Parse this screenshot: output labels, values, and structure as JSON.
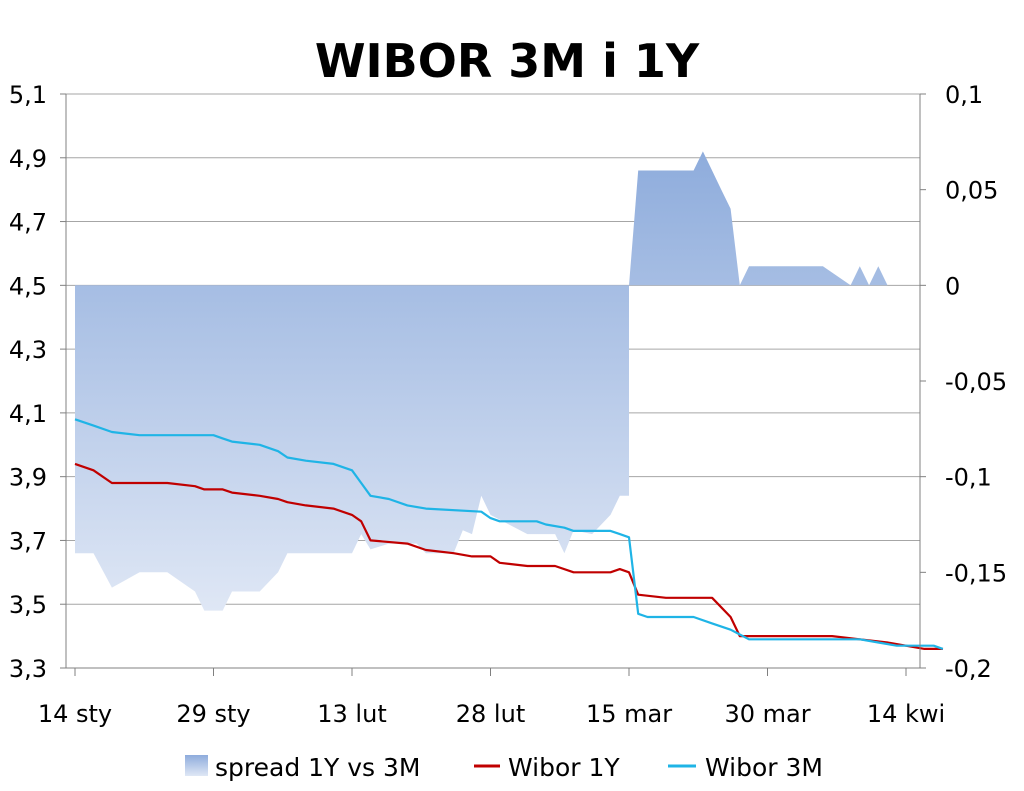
{
  "chart_data": {
    "type": "line",
    "title": "WIBOR 3M i 1Y",
    "x_tick_labels": [
      "14 sty",
      "29 sty",
      "13 lut",
      "28 lut",
      "15 mar",
      "30 mar",
      "14 kwi"
    ],
    "y_left": {
      "lim": [
        3.3,
        5.1
      ],
      "ticks": [
        "5,1",
        "4,9",
        "4,7",
        "4,5",
        "4,3",
        "4,1",
        "3,9",
        "3,7",
        "3,5",
        "3,3"
      ],
      "tick_values": [
        5.1,
        4.9,
        4.7,
        4.5,
        4.3,
        4.1,
        3.9,
        3.7,
        3.5,
        3.3
      ]
    },
    "y_right": {
      "lim": [
        -0.2,
        0.1
      ],
      "ticks": [
        "0,1",
        "0,05",
        "0",
        "-0,05",
        "-0,1",
        "-0,15",
        "-0,2"
      ],
      "tick_values": [
        0.1,
        0.05,
        0,
        -0.05,
        -0.1,
        -0.15,
        -0.2
      ]
    },
    "grid": true,
    "legend_position": "bottom",
    "series": [
      {
        "name": "spread 1Y vs 3M",
        "kind": "area",
        "axis": "right",
        "color_top": "#8eacdc",
        "color_bottom": "#dfe7f5",
        "points": [
          [
            "2020-01-14",
            -0.14
          ],
          [
            "2020-01-16",
            -0.14
          ],
          [
            "2020-01-18",
            -0.158
          ],
          [
            "2020-01-21",
            -0.15
          ],
          [
            "2020-01-24",
            -0.15
          ],
          [
            "2020-01-27",
            -0.16
          ],
          [
            "2020-01-28",
            -0.17
          ],
          [
            "2020-01-30",
            -0.17
          ],
          [
            "2020-01-31",
            -0.16
          ],
          [
            "2020-02-03",
            -0.16
          ],
          [
            "2020-02-05",
            -0.15
          ],
          [
            "2020-02-06",
            -0.14
          ],
          [
            "2020-02-07",
            -0.14
          ],
          [
            "2020-02-13",
            -0.14
          ],
          [
            "2020-02-14",
            -0.13
          ],
          [
            "2020-02-15",
            -0.138
          ],
          [
            "2020-02-17",
            -0.135
          ],
          [
            "2020-02-20",
            -0.135
          ],
          [
            "2020-02-21",
            -0.14
          ],
          [
            "2020-02-24",
            -0.14
          ],
          [
            "2020-02-25",
            -0.128
          ],
          [
            "2020-02-26",
            -0.13
          ],
          [
            "2020-02-27",
            -0.11
          ],
          [
            "2020-02-28",
            -0.12
          ],
          [
            "2020-03-03",
            -0.13
          ],
          [
            "2020-03-06",
            -0.13
          ],
          [
            "2020-03-07",
            -0.14
          ],
          [
            "2020-03-08",
            -0.128
          ],
          [
            "2020-03-10",
            -0.13
          ],
          [
            "2020-03-12",
            -0.12
          ],
          [
            "2020-03-13",
            -0.11
          ],
          [
            "2020-03-14",
            -0.11
          ],
          [
            "2020-03-14",
            0.0
          ],
          [
            "2020-03-15",
            0.06
          ],
          [
            "2020-03-21",
            0.06
          ],
          [
            "2020-03-22",
            0.07
          ],
          [
            "2020-03-24",
            0.05
          ],
          [
            "2020-03-25",
            0.04
          ],
          [
            "2020-03-26",
            0.0
          ],
          [
            "2020-03-27",
            0.01
          ],
          [
            "2020-04-04",
            0.01
          ],
          [
            "2020-04-07",
            0.0
          ],
          [
            "2020-04-08",
            0.01
          ],
          [
            "2020-04-09",
            0.0
          ],
          [
            "2020-04-10",
            0.01
          ],
          [
            "2020-04-11",
            0.0
          ]
        ]
      },
      {
        "name": "Wibor 1Y",
        "kind": "line",
        "axis": "left",
        "color": "#c00000",
        "points": [
          [
            "2020-01-14",
            3.94
          ],
          [
            "2020-01-16",
            3.92
          ],
          [
            "2020-01-18",
            3.88
          ],
          [
            "2020-01-24",
            3.88
          ],
          [
            "2020-01-27",
            3.87
          ],
          [
            "2020-01-28",
            3.86
          ],
          [
            "2020-01-30",
            3.86
          ],
          [
            "2020-01-31",
            3.85
          ],
          [
            "2020-02-03",
            3.84
          ],
          [
            "2020-02-05",
            3.83
          ],
          [
            "2020-02-06",
            3.82
          ],
          [
            "2020-02-08",
            3.81
          ],
          [
            "2020-02-11",
            3.8
          ],
          [
            "2020-02-13",
            3.78
          ],
          [
            "2020-02-14",
            3.76
          ],
          [
            "2020-02-15",
            3.7
          ],
          [
            "2020-02-19",
            3.69
          ],
          [
            "2020-02-21",
            3.67
          ],
          [
            "2020-02-24",
            3.66
          ],
          [
            "2020-02-26",
            3.65
          ],
          [
            "2020-02-28",
            3.65
          ],
          [
            "2020-02-29",
            3.63
          ],
          [
            "2020-03-03",
            3.62
          ],
          [
            "2020-03-06",
            3.62
          ],
          [
            "2020-03-08",
            3.6
          ],
          [
            "2020-03-12",
            3.6
          ],
          [
            "2020-03-13",
            3.61
          ],
          [
            "2020-03-14",
            3.6
          ],
          [
            "2020-03-15",
            3.53
          ],
          [
            "2020-03-18",
            3.52
          ],
          [
            "2020-03-23",
            3.52
          ],
          [
            "2020-03-25",
            3.46
          ],
          [
            "2020-03-26",
            3.4
          ],
          [
            "2020-04-05",
            3.4
          ],
          [
            "2020-04-08",
            3.39
          ],
          [
            "2020-04-11",
            3.38
          ],
          [
            "2020-04-15",
            3.36
          ],
          [
            "2020-04-17",
            3.36
          ]
        ]
      },
      {
        "name": "Wibor 3M",
        "kind": "line",
        "axis": "left",
        "color": "#1fb4e6",
        "points": [
          [
            "2020-01-14",
            4.08
          ],
          [
            "2020-01-16",
            4.06
          ],
          [
            "2020-01-18",
            4.04
          ],
          [
            "2020-01-21",
            4.03
          ],
          [
            "2020-01-29",
            4.03
          ],
          [
            "2020-01-30",
            4.02
          ],
          [
            "2020-01-31",
            4.01
          ],
          [
            "2020-02-03",
            4.0
          ],
          [
            "2020-02-05",
            3.98
          ],
          [
            "2020-02-06",
            3.96
          ],
          [
            "2020-02-08",
            3.95
          ],
          [
            "2020-02-11",
            3.94
          ],
          [
            "2020-02-13",
            3.92
          ],
          [
            "2020-02-14",
            3.88
          ],
          [
            "2020-02-15",
            3.84
          ],
          [
            "2020-02-17",
            3.83
          ],
          [
            "2020-02-19",
            3.81
          ],
          [
            "2020-02-21",
            3.8
          ],
          [
            "2020-02-27",
            3.79
          ],
          [
            "2020-02-28",
            3.77
          ],
          [
            "2020-02-29",
            3.76
          ],
          [
            "2020-03-04",
            3.76
          ],
          [
            "2020-03-05",
            3.75
          ],
          [
            "2020-03-07",
            3.74
          ],
          [
            "2020-03-08",
            3.73
          ],
          [
            "2020-03-12",
            3.73
          ],
          [
            "2020-03-13",
            3.72
          ],
          [
            "2020-03-14",
            3.71
          ],
          [
            "2020-03-15",
            3.47
          ],
          [
            "2020-03-16",
            3.46
          ],
          [
            "2020-03-21",
            3.46
          ],
          [
            "2020-03-23",
            3.44
          ],
          [
            "2020-03-25",
            3.42
          ],
          [
            "2020-03-27",
            3.39
          ],
          [
            "2020-04-08",
            3.39
          ],
          [
            "2020-04-10",
            3.38
          ],
          [
            "2020-04-12",
            3.37
          ],
          [
            "2020-04-16",
            3.37
          ],
          [
            "2020-04-17",
            3.36
          ]
        ]
      }
    ]
  }
}
